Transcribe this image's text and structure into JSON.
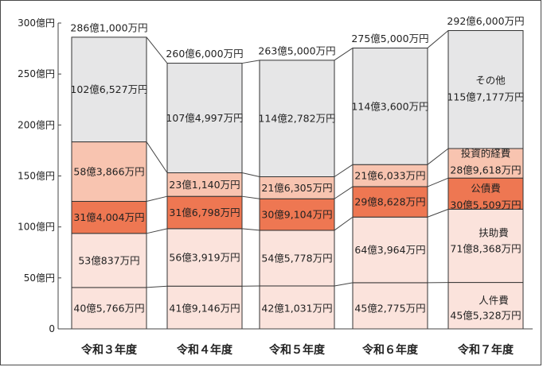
{
  "chart_data": {
    "type": "bar",
    "stacked": true,
    "categories": [
      "令和３年度",
      "令和４年度",
      "令和５年度",
      "令和６年度",
      "令和７年度"
    ],
    "series": [
      {
        "name": "人件費",
        "color": "#fbe3dc",
        "values": [
          40.5766,
          41.9146,
          42.1031,
          45.2775,
          45.5328
        ],
        "labels": [
          "40億5,766万円",
          "41億9,146万円",
          "42億1,031万円",
          "45億2,775万円",
          "45億5,328万円"
        ]
      },
      {
        "name": "扶助費",
        "color": "#fbe3dc",
        "values": [
          53.0837,
          56.3919,
          54.5778,
          64.3964,
          71.8368
        ],
        "labels": [
          "53億837万円",
          "56億3,919万円",
          "54億5,778万円",
          "64億3,964万円",
          "71億8,368万円"
        ]
      },
      {
        "name": "公債費",
        "color": "#ee7752",
        "values": [
          31.4004,
          31.6798,
          30.9104,
          29.8628,
          30.5509
        ],
        "labels": [
          "31億4,004万円",
          "31億6,798万円",
          "30億9,104万円",
          "29億8,628万円",
          "30億5,509万円"
        ]
      },
      {
        "name": "投資的経費",
        "color": "#f8c4b0",
        "values": [
          58.3866,
          23.114,
          21.6305,
          21.6033,
          28.9618
        ],
        "labels": [
          "58億3,866万円",
          "23億1,140万円",
          "21億6,305万円",
          "21億6,033万円",
          "28億9,618万円"
        ]
      },
      {
        "name": "その他",
        "color": "#e6e6e7",
        "values": [
          102.6527,
          107.4997,
          114.2782,
          114.36,
          115.7177
        ],
        "labels": [
          "102億6,527万円",
          "107億4,997万円",
          "114億2,782万円",
          "114億3,600万円",
          "115億7,177万円"
        ]
      }
    ],
    "totals": [
      286.1,
      260.6,
      263.5,
      275.5,
      292.6
    ],
    "total_labels": [
      "286億1,000万円",
      "260億6,000万円",
      "263億5,000万円",
      "275億5,000万円",
      "292億6,000万円"
    ],
    "y_ticks": [
      "0",
      "50億円",
      "100億円",
      "150億円",
      "200億円",
      "250億円",
      "300億円"
    ],
    "ylim": [
      0,
      300
    ],
    "legend_placement": "inside-last-bar"
  }
}
